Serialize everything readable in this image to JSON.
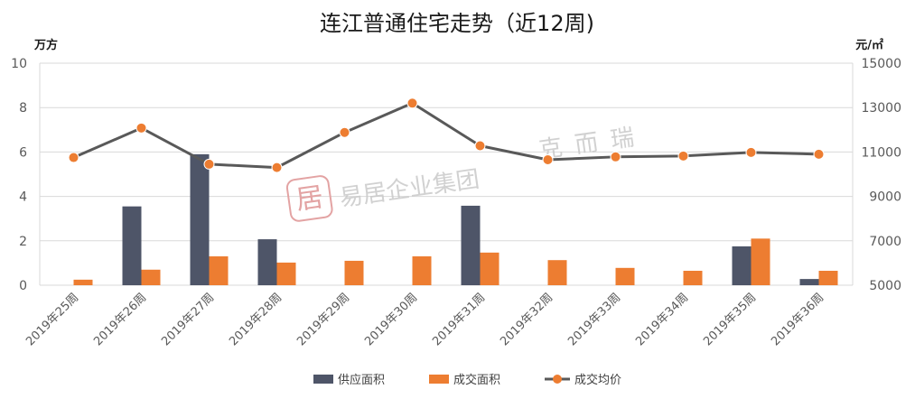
{
  "colors": {
    "supply": "#4e5568",
    "deal": "#ed7d31",
    "price_line": "#595959",
    "price_marker": "#ed7d31"
  },
  "chart_data": {
    "type": "bar",
    "title": "连江普通住宅走势（近12周)",
    "y_left_unit": "万方",
    "y_right_unit": "元/㎡",
    "categories": [
      "2019年25周",
      "2019年26周",
      "2019年27周",
      "2019年28周",
      "2019年29周",
      "2019年30周",
      "2019年31周",
      "2019年32周",
      "2019年33周",
      "2019年34周",
      "2019年35周",
      "2019年36周"
    ],
    "ylim_left": [
      0,
      10
    ],
    "yticks_left": [
      0,
      2,
      4,
      6,
      8,
      10
    ],
    "ylim_right": [
      5000,
      15000
    ],
    "yticks_right": [
      5000,
      7000,
      9000,
      11000,
      13000,
      15000
    ],
    "series": [
      {
        "name": "供应面积",
        "type": "bar",
        "axis": "left",
        "values": [
          0,
          3.55,
          5.9,
          2.07,
          0,
          0,
          3.58,
          0,
          0,
          0,
          1.75,
          0.28
        ]
      },
      {
        "name": "成交面积",
        "type": "bar",
        "axis": "left",
        "values": [
          0.25,
          0.7,
          1.3,
          1.02,
          1.1,
          1.3,
          1.47,
          1.13,
          0.78,
          0.65,
          2.1,
          0.65
        ]
      },
      {
        "name": "成交均价",
        "type": "line",
        "axis": "right",
        "values": [
          10750,
          12080,
          10450,
          10300,
          11880,
          13200,
          11280,
          10650,
          10780,
          10820,
          10980,
          10900
        ]
      }
    ],
    "legend": [
      "供应面积",
      "成交面积",
      "成交均价"
    ],
    "legend_position": "bottom",
    "grid": true
  },
  "watermark": {
    "logo_glyph": "居",
    "company": "易居企业集团",
    "brand": "克而瑞"
  }
}
